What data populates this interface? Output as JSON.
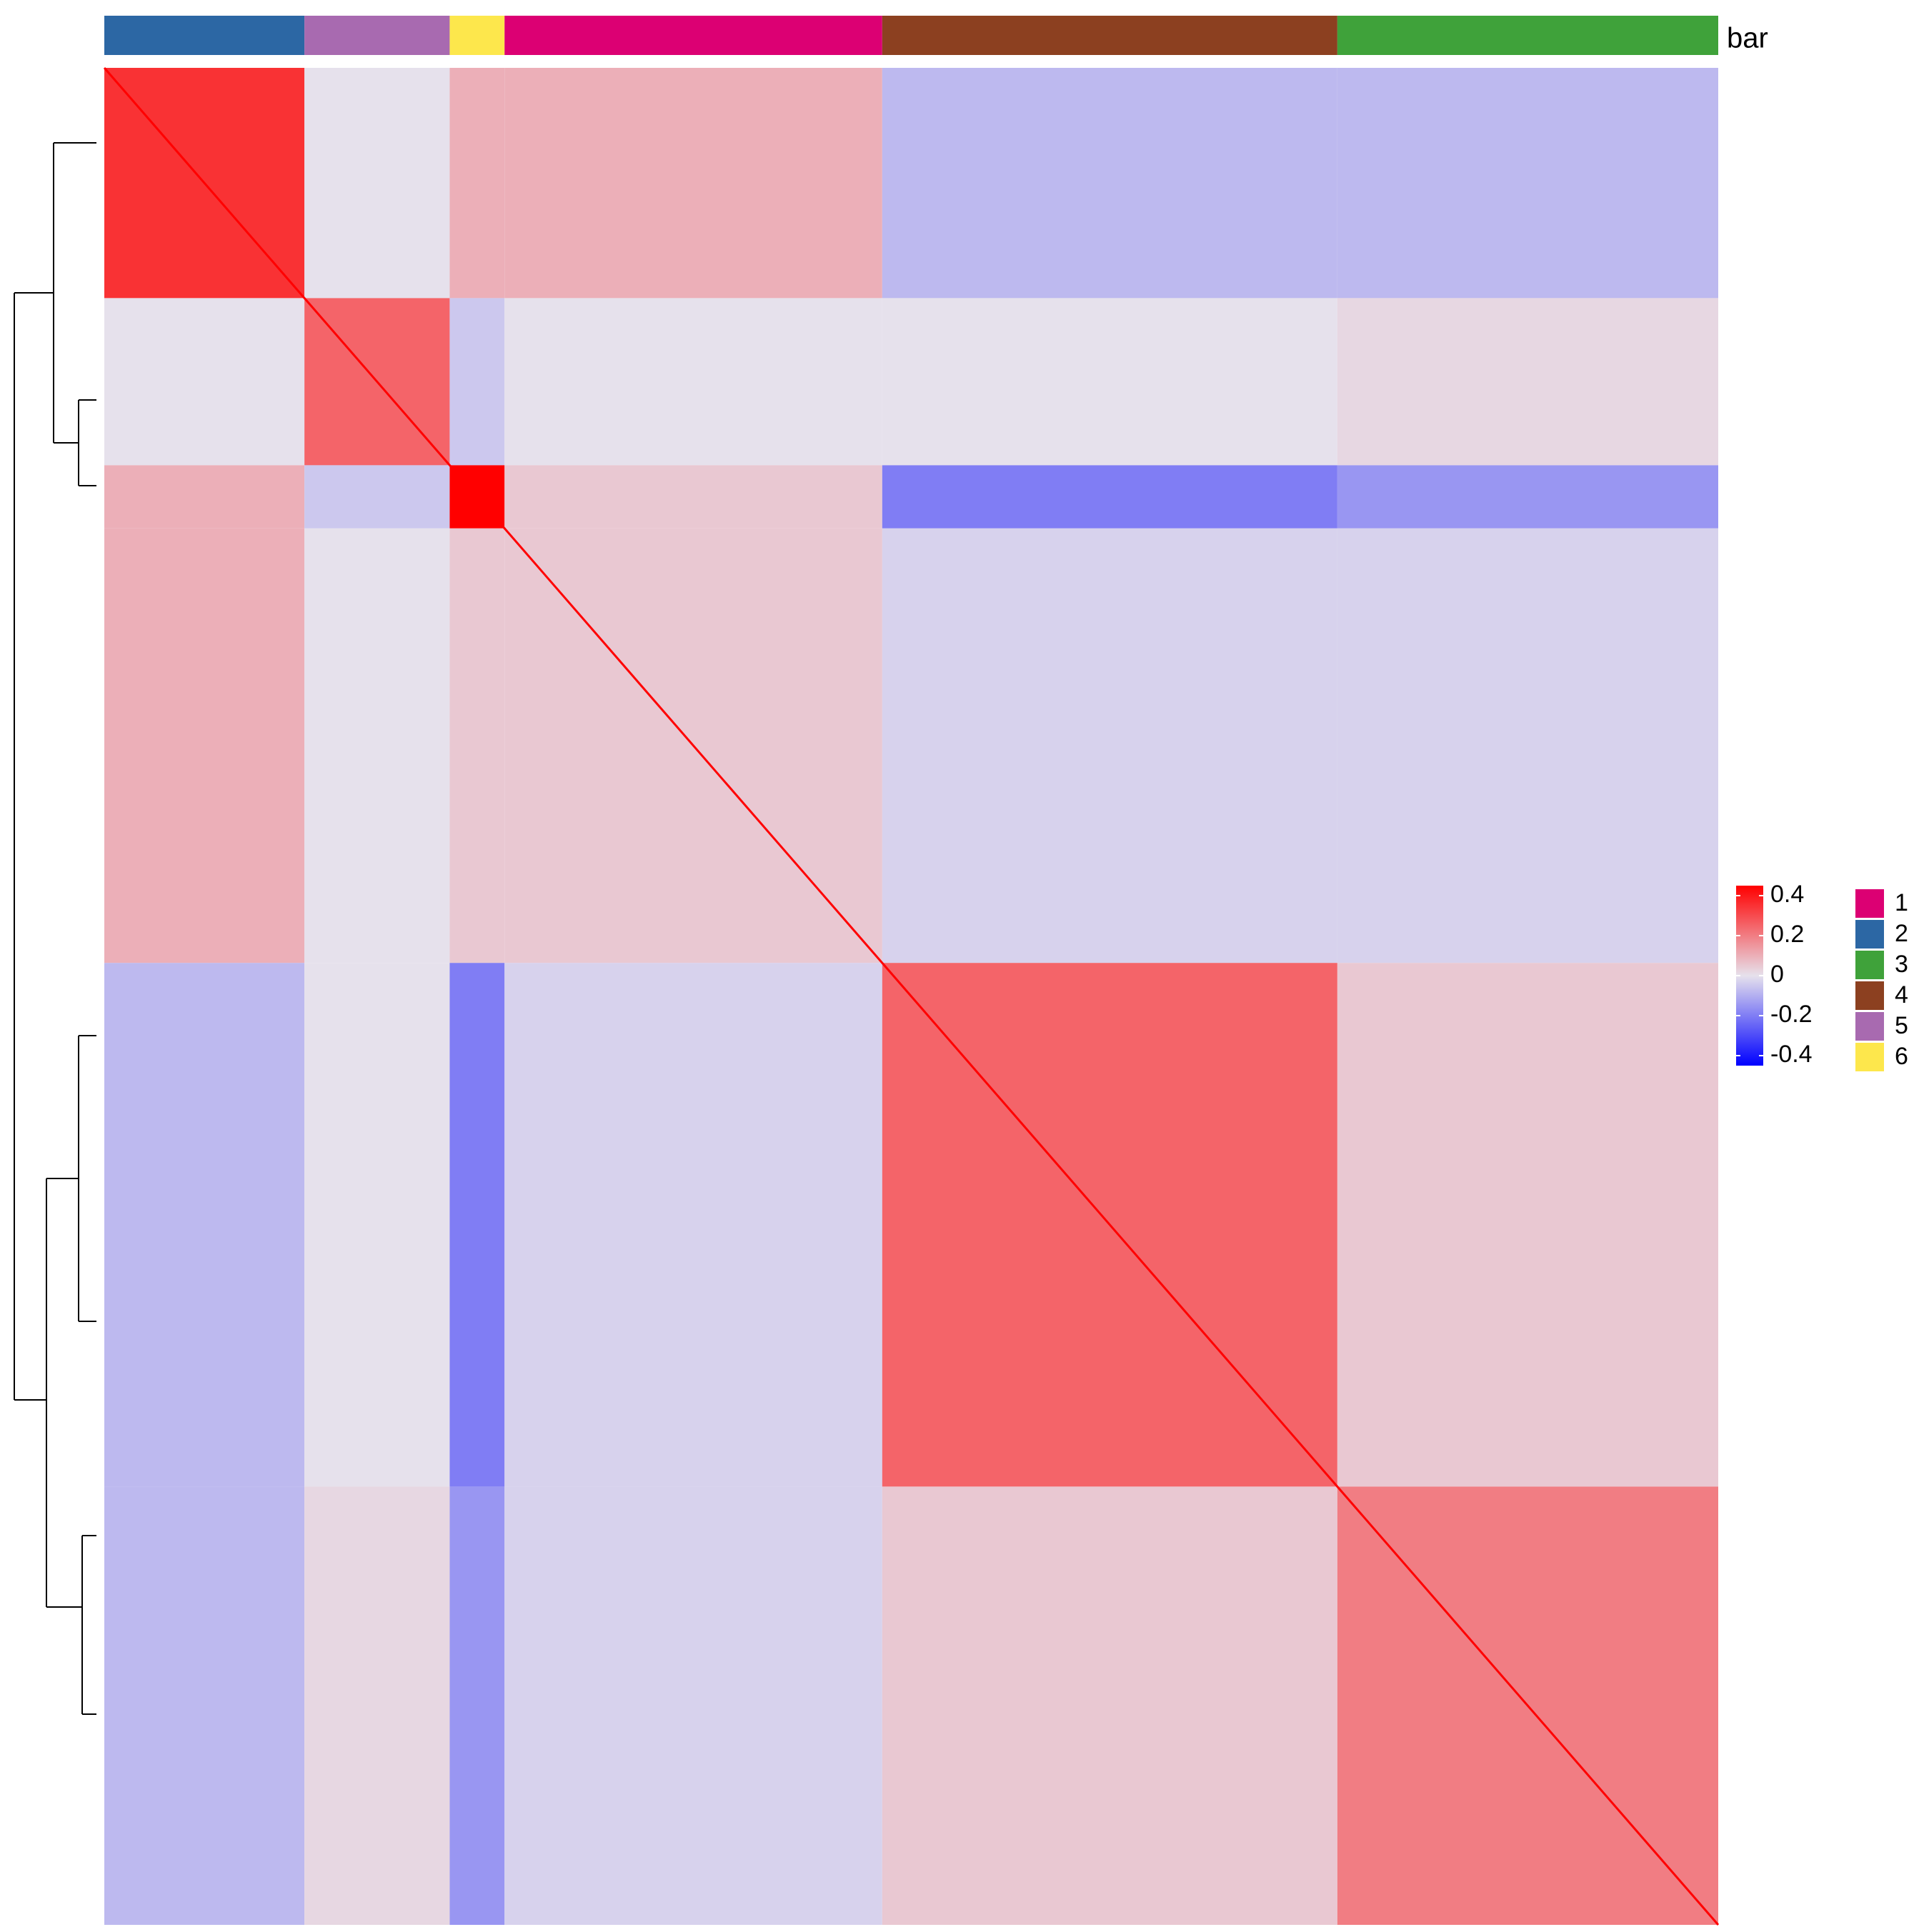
{
  "chart_data": {
    "type": "heatmap",
    "annotation_name": "bar",
    "levels": [
      {
        "label": "1",
        "color": "#DC0073",
        "size": 117
      },
      {
        "label": "2",
        "color": "#2C67A4",
        "size": 62
      },
      {
        "label": "3",
        "color": "#3FA23A",
        "size": 118
      },
      {
        "label": "4",
        "color": "#8C4020",
        "size": 141
      },
      {
        "label": "5",
        "color": "#A86AB0",
        "size": 45
      },
      {
        "label": "6",
        "color": "#FDE74C",
        "size": 17
      }
    ],
    "cluster_order": [
      "2",
      "5",
      "6",
      "1",
      "4",
      "3"
    ],
    "matrix": [
      [
        0.35,
        0.0,
        0.1,
        0.1,
        -0.08,
        -0.08
      ],
      [
        0.0,
        0.25,
        -0.05,
        0.0,
        0.0,
        0.02
      ],
      [
        0.1,
        -0.05,
        0.45,
        0.05,
        -0.2,
        -0.15
      ],
      [
        0.1,
        0.0,
        0.05,
        0.05,
        -0.03,
        -0.03
      ],
      [
        -0.08,
        0.0,
        -0.2,
        -0.03,
        0.25,
        0.05
      ],
      [
        -0.08,
        0.02,
        -0.15,
        -0.03,
        0.05,
        0.2
      ]
    ],
    "colors": [
      "#0000FF",
      "#E6E1EC",
      "#FF0000"
    ],
    "zlim": [
      -0.45,
      0.45
    ],
    "zticks": [
      -0.4,
      -0.2,
      0,
      0.2,
      0.4
    ]
  }
}
